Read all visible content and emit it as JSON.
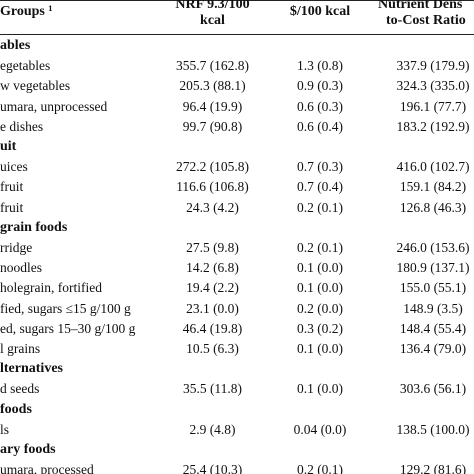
{
  "headers": {
    "groups": "Groups ¹",
    "nrf_line1": "NRF 9.3/100",
    "nrf_line2": "kcal",
    "cost": "$/100 kcal",
    "ndcr_line1": "Nutrient Dens",
    "ndcr_line2": "to-Cost Ratio"
  },
  "rows": [
    {
      "type": "group",
      "label": "ables"
    },
    {
      "type": "item",
      "label": "egetables",
      "nrf": "355.7 (162.8)",
      "cost": "1.3 (0.8)",
      "ndcr": "337.9 (179.9)"
    },
    {
      "type": "item",
      "label": "w vegetables",
      "nrf": "205.3 (88.1)",
      "cost": "0.9 (0.3)",
      "ndcr": "324.3 (335.0)"
    },
    {
      "type": "item",
      "label": "umara, unprocessed",
      "nrf": "96.4 (19.9)",
      "cost": "0.6 (0.3)",
      "ndcr": "196.1 (77.7)"
    },
    {
      "type": "item",
      "label": "e dishes",
      "nrf": "99.7 (90.8)",
      "cost": "0.6 (0.4)",
      "ndcr": "183.2 (192.9)"
    },
    {
      "type": "group",
      "label": "uit"
    },
    {
      "type": "item",
      "label": "uices",
      "nrf": "272.2 (105.8)",
      "cost": "0.7 (0.3)",
      "ndcr": "416.0 (102.7)"
    },
    {
      "type": "item",
      "label": "fruit",
      "nrf": "116.6 (106.8)",
      "cost": "0.7 (0.4)",
      "ndcr": "159.1 (84.2)"
    },
    {
      "type": "item",
      "label": "fruit",
      "nrf": "24.3 (4.2)",
      "cost": "0.2 (0.1)",
      "ndcr": "126.8 (46.3)"
    },
    {
      "type": "group",
      "label": "grain foods"
    },
    {
      "type": "item",
      "label": "rridge",
      "nrf": "27.5 (9.8)",
      "cost": "0.2 (0.1)",
      "ndcr": "246.0 (153.6)"
    },
    {
      "type": "item",
      "label": "noodles",
      "nrf": "14.2 (6.8)",
      "cost": "0.1 (0.0)",
      "ndcr": "180.9 (137.1)"
    },
    {
      "type": "item",
      "label": "holegrain, fortified",
      "nrf": "19.4 (2.2)",
      "cost": "0.1 (0.0)",
      "ndcr": "155.0 (55.1)"
    },
    {
      "type": "item",
      "label": "fied, sugars ≤15 g/100 g",
      "nrf": "23.1 (0.0)",
      "cost": "0.2 (0.0)",
      "ndcr": "148.9 (3.5)"
    },
    {
      "type": "item",
      "label": "ed, sugars 15–30 g/100 g",
      "nrf": "46.4 (19.8)",
      "cost": "0.3 (0.2)",
      "ndcr": "148.4 (55.4)"
    },
    {
      "type": "item",
      "label": "l grains",
      "nrf": "10.5 (6.3)",
      "cost": "0.1 (0.0)",
      "ndcr": "136.4 (79.0)"
    },
    {
      "type": "group",
      "label": "lternatives"
    },
    {
      "type": "item",
      "label": "d seeds",
      "nrf": "35.5 (11.8)",
      "cost": "0.1 (0.0)",
      "ndcr": "303.6 (56.1)"
    },
    {
      "type": "group",
      "label": "foods"
    },
    {
      "type": "item",
      "label": "ls",
      "nrf": "2.9 (4.8)",
      "cost": "0.04 (0.0)",
      "ndcr": "138.5 (100.0)"
    },
    {
      "type": "group",
      "label": "ary foods"
    },
    {
      "type": "item",
      "label": "umara, processed",
      "nrf": "25.4 (10.3)",
      "cost": "0.2 (0.1)",
      "ndcr": "129.2 (81.6)"
    }
  ]
}
